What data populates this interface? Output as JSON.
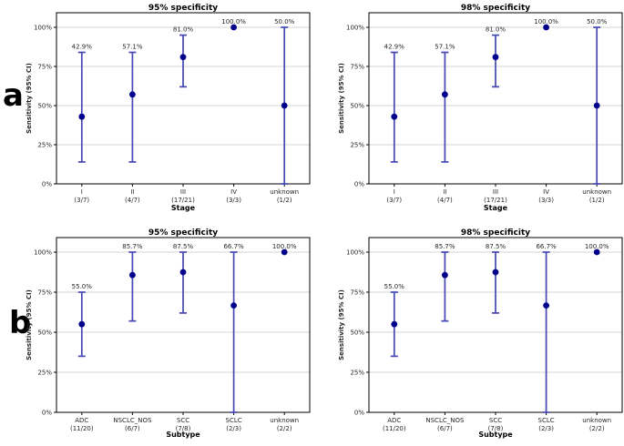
{
  "figure": {
    "panel_labels": [
      "a",
      "b"
    ],
    "colors": {
      "marker": "#00008B",
      "errorbar": "#4646B4",
      "grid": "#D4D4D4",
      "axis": "#000000",
      "text": "#262626",
      "title": "#000000",
      "background": "#FFFFFF"
    }
  },
  "chart_data": [
    {
      "id": "stage-95",
      "row": "a",
      "type": "scatter",
      "title": "95% specificity",
      "xlabel": "Stage",
      "ylabel": "Sensitivity (95% CI)",
      "ylim": [
        0,
        100
      ],
      "grid": true,
      "legend": "none",
      "y_ticks_pct": [
        0,
        25,
        50,
        75,
        100
      ],
      "y_tick_labels": [
        "0%",
        "25%",
        "50%",
        "75%",
        "100%"
      ],
      "categories": [
        "I",
        "II",
        "III",
        "IV",
        "unknown"
      ],
      "counts": [
        "(3/7)",
        "(4/7)",
        "(17/21)",
        "(3/3)",
        "(1/2)"
      ],
      "values": [
        42.9,
        57.1,
        81.0,
        100.0,
        50.0
      ],
      "labels": [
        "42.9%",
        "57.1%",
        "81.0%",
        "100.0%",
        "50.0%"
      ],
      "ci_low": [
        14,
        14,
        62,
        100,
        0
      ],
      "ci_high": [
        84,
        84,
        95,
        100,
        100
      ]
    },
    {
      "id": "stage-98",
      "row": "a",
      "type": "scatter",
      "title": "98% specificity",
      "xlabel": "Stage",
      "ylabel": "Sensitivity (95% CI)",
      "ylim": [
        0,
        100
      ],
      "grid": true,
      "legend": "none",
      "y_ticks_pct": [
        0,
        25,
        50,
        75,
        100
      ],
      "y_tick_labels": [
        "0%",
        "25%",
        "50%",
        "75%",
        "100%"
      ],
      "categories": [
        "I",
        "II",
        "III",
        "IV",
        "unknown"
      ],
      "counts": [
        "(3/7)",
        "(4/7)",
        "(17/21)",
        "(3/3)",
        "(1/2)"
      ],
      "values": [
        42.9,
        57.1,
        81.0,
        100.0,
        50.0
      ],
      "labels": [
        "42.9%",
        "57.1%",
        "81.0%",
        "100.0%",
        "50.0%"
      ],
      "ci_low": [
        14,
        14,
        62,
        100,
        0
      ],
      "ci_high": [
        84,
        84,
        95,
        100,
        100
      ]
    },
    {
      "id": "subtype-95",
      "row": "b",
      "type": "scatter",
      "title": "95% specificity",
      "xlabel": "Subtype",
      "ylabel": "Sensitivity (95% CI)",
      "ylim": [
        0,
        100
      ],
      "grid": true,
      "legend": "none",
      "y_ticks_pct": [
        0,
        25,
        50,
        75,
        100
      ],
      "y_tick_labels": [
        "0%",
        "25%",
        "50%",
        "75%",
        "100%"
      ],
      "categories": [
        "ADC",
        "NSCLC_NOS",
        "SCC",
        "SCLC",
        "unknown"
      ],
      "counts": [
        "(11/20)",
        "(6/7)",
        "(7/8)",
        "(2/3)",
        "(2/2)"
      ],
      "values": [
        55.0,
        85.7,
        87.5,
        66.7,
        100.0
      ],
      "labels": [
        "55.0%",
        "85.7%",
        "87.5%",
        "66.7%",
        "100.0%"
      ],
      "ci_low": [
        35,
        57,
        62,
        0,
        100
      ],
      "ci_high": [
        75,
        100,
        100,
        100,
        100
      ]
    },
    {
      "id": "subtype-98",
      "row": "b",
      "type": "scatter",
      "title": "98% specificity",
      "xlabel": "Subtype",
      "ylabel": "Sensitivity (95% CI)",
      "ylim": [
        0,
        100
      ],
      "grid": true,
      "legend": "none",
      "y_ticks_pct": [
        0,
        25,
        50,
        75,
        100
      ],
      "y_tick_labels": [
        "0%",
        "25%",
        "50%",
        "75%",
        "100%"
      ],
      "categories": [
        "ADC",
        "NSCLC_NOS",
        "SCC",
        "SCLC",
        "unknown"
      ],
      "counts": [
        "(11/20)",
        "(6/7)",
        "(7/8)",
        "(2/3)",
        "(2/2)"
      ],
      "values": [
        55.0,
        85.7,
        87.5,
        66.7,
        100.0
      ],
      "labels": [
        "55.0%",
        "85.7%",
        "87.5%",
        "66.7%",
        "100.0%"
      ],
      "ci_low": [
        35,
        57,
        62,
        0,
        100
      ],
      "ci_high": [
        75,
        100,
        100,
        100,
        100
      ]
    }
  ]
}
